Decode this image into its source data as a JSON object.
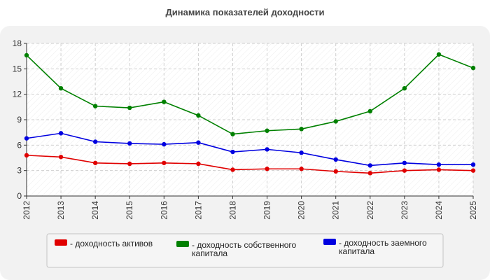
{
  "title": "Динамика показателей доходности",
  "chart_data": {
    "type": "line",
    "title": "Динамика показателей доходности",
    "x": [
      "2012",
      "2013",
      "2014",
      "2015",
      "2016",
      "2017",
      "2018",
      "2019",
      "2020",
      "2021",
      "2022",
      "2023",
      "2024",
      "2025"
    ],
    "ylim": [
      0,
      18
    ],
    "yticks": [
      0,
      3,
      6,
      9,
      12,
      15,
      18
    ],
    "grid": true,
    "legend_position": "bottom",
    "series": [
      {
        "name": "- доходность активов",
        "color": "#e00000",
        "values": [
          4.8,
          4.6,
          3.9,
          3.8,
          3.9,
          3.8,
          3.1,
          3.2,
          3.2,
          2.9,
          2.7,
          3.0,
          3.1,
          3.0
        ]
      },
      {
        "name": "- доходность собственного капитала",
        "color": "#008000",
        "values": [
          16.6,
          12.7,
          10.6,
          10.4,
          11.1,
          9.5,
          7.3,
          7.7,
          7.9,
          8.8,
          10.0,
          12.7,
          16.7,
          15.1
        ]
      },
      {
        "name": "- доходность заемного капитала",
        "color": "#0000e0",
        "values": [
          6.8,
          7.4,
          6.4,
          6.2,
          6.1,
          6.3,
          5.2,
          5.5,
          5.1,
          4.3,
          3.6,
          3.9,
          3.7,
          3.7
        ]
      }
    ]
  }
}
